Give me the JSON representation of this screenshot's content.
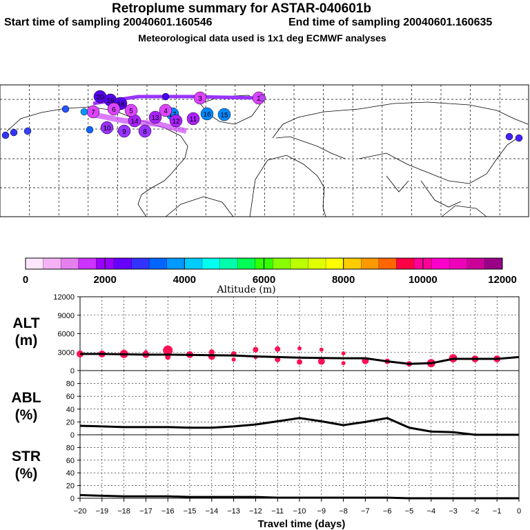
{
  "header": {
    "title": "Retroplume summary for ASTAR-040601b",
    "start": "Start time of sampling 20040601.160546",
    "end": "End time of sampling 20040601.160635",
    "met": "Meteorological data used is 1x1 deg ECMWF analyses"
  },
  "colorbar": {
    "colors": [
      "#ffe6ff",
      "#f5b3f5",
      "#e680f0",
      "#cc33ff",
      "#9900ff",
      "#6600ff",
      "#3333ff",
      "#0066ff",
      "#0099ff",
      "#00ccff",
      "#00ffee",
      "#00ffaa",
      "#00ff55",
      "#33ff00",
      "#88ff00",
      "#bbff00",
      "#e0ff00",
      "#ffff00",
      "#ffcc00",
      "#ff9900",
      "#ff6600",
      "#ff0044",
      "#ff0099",
      "#ff00cc",
      "#ee00bb",
      "#cc0099",
      "#990088"
    ],
    "tick_labels": [
      "0",
      "2000",
      "4000",
      "6000",
      "8000",
      "10000",
      "12000"
    ],
    "label": "Altitude (m)"
  },
  "map_plumes": [
    {
      "color": "#5500ee",
      "labels": [
        "20",
        "19",
        "18"
      ]
    },
    {
      "color": "#0088ff",
      "labels": [
        "17",
        "16",
        "15"
      ]
    },
    {
      "color": "#aa22ff",
      "labels": [
        "14",
        "13",
        "12",
        "11"
      ]
    },
    {
      "color": "#9933ff",
      "labels": [
        "10",
        "9",
        "8"
      ]
    },
    {
      "color": "#dd44ff",
      "labels": [
        "7",
        "6",
        "5",
        "4",
        "3",
        "2"
      ]
    }
  ],
  "chart_data": [
    {
      "type": "line",
      "panel": "ALT",
      "ylabel_top": "ALT",
      "ylabel_unit": "(m)",
      "yticks": [
        "12000",
        "9000",
        "6000",
        "3000",
        "0"
      ],
      "ylim": [
        0,
        12000
      ],
      "x": [
        -20,
        -19,
        -18,
        -17,
        -16,
        -15,
        -14,
        -13,
        -12,
        -11,
        -10,
        -9,
        -8,
        -7,
        -6,
        -5,
        -4,
        -3,
        -2,
        -1,
        0
      ],
      "values": [
        2700,
        2700,
        2650,
        2600,
        2600,
        2550,
        2500,
        2450,
        2300,
        2200,
        2100,
        2050,
        2000,
        2000,
        1500,
        1100,
        1200,
        1900,
        1900,
        1900,
        2200
      ],
      "scatter_color": "#ff1155",
      "scatter": [
        {
          "x": -20,
          "y": 2700,
          "r": 5
        },
        {
          "x": -19,
          "y": 2700,
          "r": 5
        },
        {
          "x": -18,
          "y": 2700,
          "r": 6
        },
        {
          "x": -17,
          "y": 2600,
          "r": 5
        },
        {
          "x": -17,
          "y": 3000,
          "r": 3
        },
        {
          "x": -16,
          "y": 3300,
          "r": 7
        },
        {
          "x": -16,
          "y": 2200,
          "r": 4
        },
        {
          "x": -15,
          "y": 2600,
          "r": 5
        },
        {
          "x": -14,
          "y": 3000,
          "r": 4
        },
        {
          "x": -14,
          "y": 2300,
          "r": 5
        },
        {
          "x": -13,
          "y": 2700,
          "r": 4
        },
        {
          "x": -13,
          "y": 1800,
          "r": 3
        },
        {
          "x": -12,
          "y": 3400,
          "r": 4
        },
        {
          "x": -12,
          "y": 2200,
          "r": 3
        },
        {
          "x": -11,
          "y": 3500,
          "r": 4
        },
        {
          "x": -11,
          "y": 1800,
          "r": 4
        },
        {
          "x": -10,
          "y": 3600,
          "r": 3
        },
        {
          "x": -10,
          "y": 1400,
          "r": 4
        },
        {
          "x": -9,
          "y": 3400,
          "r": 3
        },
        {
          "x": -9,
          "y": 1500,
          "r": 5
        },
        {
          "x": -8,
          "y": 2800,
          "r": 3
        },
        {
          "x": -8,
          "y": 1200,
          "r": 3
        },
        {
          "x": -7,
          "y": 1600,
          "r": 5
        },
        {
          "x": -6,
          "y": 1500,
          "r": 4
        },
        {
          "x": -5,
          "y": 1100,
          "r": 4
        },
        {
          "x": -4,
          "y": 1200,
          "r": 6
        },
        {
          "x": -3,
          "y": 2000,
          "r": 6
        },
        {
          "x": -2,
          "y": 1900,
          "r": 5
        },
        {
          "x": -1,
          "y": 1900,
          "r": 5
        }
      ]
    },
    {
      "type": "line",
      "panel": "ABL",
      "ylabel_top": "ABL",
      "ylabel_unit": "(%)",
      "yticks": [
        "80",
        "60",
        "40",
        "20",
        "0"
      ],
      "ylim": [
        0,
        100
      ],
      "x": [
        -20,
        -19,
        -18,
        -17,
        -16,
        -15,
        -14,
        -13,
        -12,
        -11,
        -10,
        -9,
        -8,
        -7,
        -6,
        -5,
        -4,
        -3,
        -2,
        -1,
        0
      ],
      "values": [
        14,
        13,
        12,
        12,
        12,
        11,
        11,
        13,
        16,
        21,
        26,
        21,
        15,
        20,
        26,
        11,
        5,
        4,
        0,
        0,
        0
      ]
    },
    {
      "type": "line",
      "panel": "STR",
      "ylabel_top": "STR",
      "ylabel_unit": "(%)",
      "yticks": [
        "80",
        "60",
        "40",
        "20",
        "0"
      ],
      "ylim": [
        0,
        100
      ],
      "x": [
        -20,
        -19,
        -18,
        -17,
        -16,
        -15,
        -14,
        -13,
        -12,
        -11,
        -10,
        -9,
        -8,
        -7,
        -6,
        -5,
        -4,
        -3,
        -2,
        -1,
        0
      ],
      "values": [
        5,
        4,
        3,
        3,
        3,
        2,
        2,
        2,
        2,
        1,
        1,
        1,
        1,
        1,
        1,
        0,
        0,
        0,
        0,
        0,
        0
      ]
    }
  ],
  "xaxis": {
    "tick_labels": [
      "−20",
      "−19",
      "−18",
      "−17",
      "−16",
      "−15",
      "−14",
      "−13",
      "−12",
      "−11",
      "−10",
      "−9",
      "−8",
      "−7",
      "−6",
      "−5",
      "−4",
      "−3",
      "−2",
      "−1",
      "0"
    ],
    "label": "Travel time (days)"
  }
}
